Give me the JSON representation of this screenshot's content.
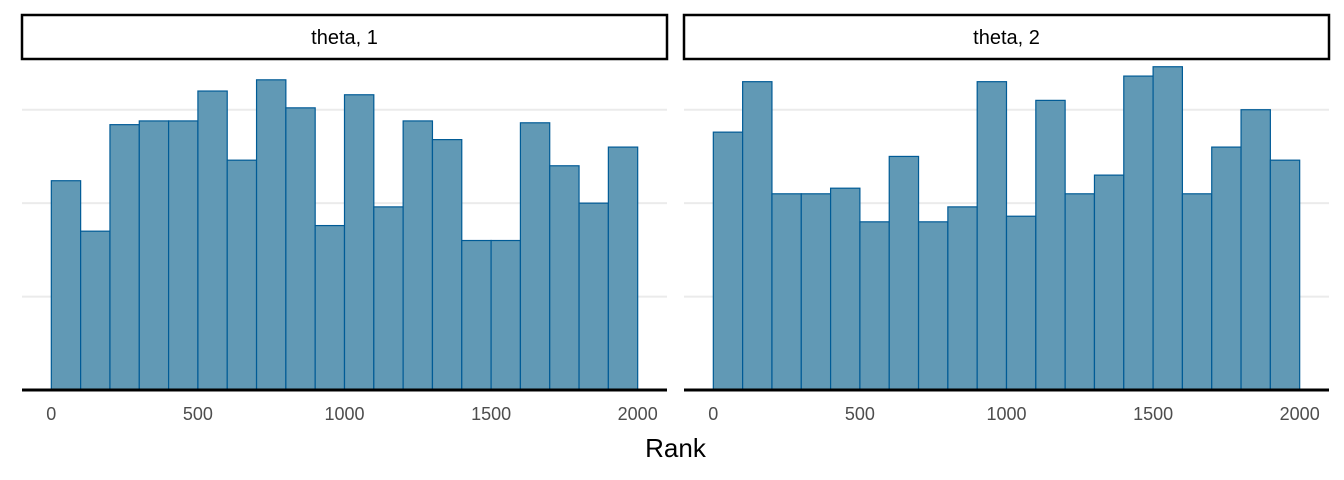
{
  "chart_data": [
    {
      "type": "bar",
      "facet_label": "theta, 1",
      "bin_width": 100,
      "bin_starts": [
        0,
        100,
        200,
        300,
        400,
        500,
        600,
        700,
        800,
        900,
        1000,
        1100,
        1200,
        1300,
        1400,
        1500,
        1600,
        1700,
        1800,
        1900
      ],
      "values": [
        112,
        85,
        142,
        144,
        144,
        160,
        123,
        166,
        151,
        88,
        158,
        98,
        144,
        134,
        80,
        80,
        143,
        120,
        100,
        130
      ],
      "xlabel": "Rank",
      "xticks": [
        0,
        500,
        1000,
        1500,
        2000
      ],
      "xlim": [
        -100,
        2100
      ],
      "ylim": [
        0,
        175
      ],
      "y_gridlines": [
        50,
        100,
        150
      ],
      "show_y_tick_labels": false,
      "fill_color": "#6199b5",
      "edge_color": "#005b96"
    },
    {
      "type": "bar",
      "facet_label": "theta, 2",
      "bin_width": 100,
      "bin_starts": [
        0,
        100,
        200,
        300,
        400,
        500,
        600,
        700,
        800,
        900,
        1000,
        1100,
        1200,
        1300,
        1400,
        1500,
        1600,
        1700,
        1800,
        1900
      ],
      "values": [
        138,
        165,
        105,
        105,
        108,
        90,
        125,
        90,
        98,
        165,
        93,
        155,
        105,
        115,
        168,
        173,
        105,
        130,
        150,
        123
      ],
      "xlabel": "Rank",
      "xticks": [
        0,
        500,
        1000,
        1500,
        2000
      ],
      "xlim": [
        -100,
        2100
      ],
      "ylim": [
        0,
        175
      ],
      "y_gridlines": [
        50,
        100,
        150
      ],
      "show_y_tick_labels": false,
      "fill_color": "#6199b5",
      "edge_color": "#005b96"
    }
  ],
  "axis_title": "Rank",
  "tick_labels": [
    "0",
    "500",
    "1000",
    "1500",
    "2000"
  ],
  "colors": {
    "bar_fill": "#6199b5",
    "bar_edge": "#005b96",
    "grid": "#ebebeb",
    "axis_line": "#000000",
    "tick_text": "#4d4d4d"
  }
}
